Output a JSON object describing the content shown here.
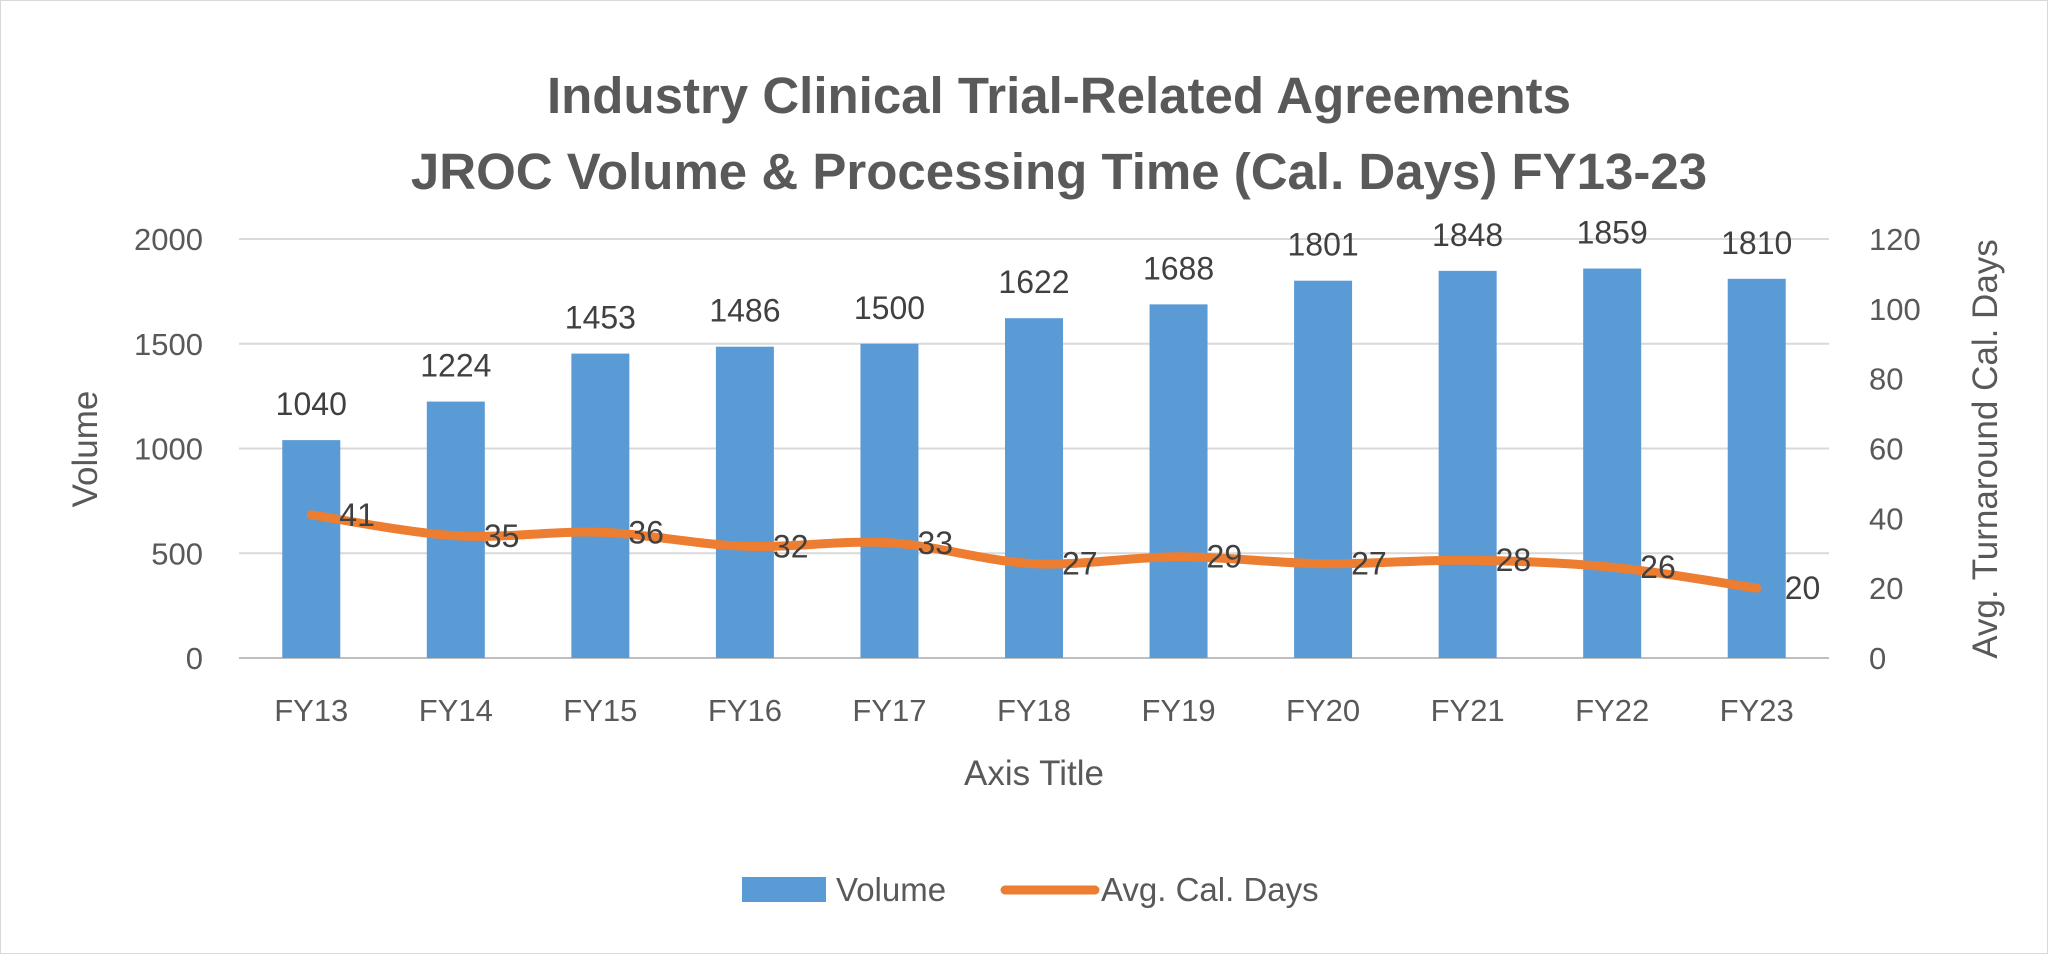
{
  "chart_data": {
    "type": "bar+line",
    "title_line1": "Industry Clinical Trial-Related Agreements",
    "title_line2": "JROC Volume & Processing Time (Cal. Days) FY13-23",
    "categories": [
      "FY13",
      "FY14",
      "FY15",
      "FY16",
      "FY17",
      "FY18",
      "FY19",
      "FY20",
      "FY21",
      "FY22",
      "FY23"
    ],
    "series": [
      {
        "name": "Volume",
        "type": "bar",
        "axis": "left",
        "color": "#5b9bd5",
        "values": [
          1040,
          1224,
          1453,
          1486,
          1500,
          1622,
          1688,
          1801,
          1848,
          1859,
          1810
        ]
      },
      {
        "name": "Avg. Cal. Days",
        "type": "line",
        "axis": "right",
        "color": "#ed7d31",
        "values": [
          41,
          35,
          36,
          32,
          33,
          27,
          29,
          27,
          28,
          26,
          20
        ]
      }
    ],
    "xlabel": "Axis Title",
    "ylabel": "Volume",
    "y2label": "Avg. Turnaround Cal. Days",
    "ylim": [
      0,
      2000
    ],
    "yticks": [
      0,
      500,
      1000,
      1500,
      2000
    ],
    "y2lim": [
      0,
      120
    ],
    "y2ticks": [
      0,
      20,
      40,
      60,
      80,
      100,
      120
    ],
    "grid": true,
    "legend_position": "bottom"
  }
}
